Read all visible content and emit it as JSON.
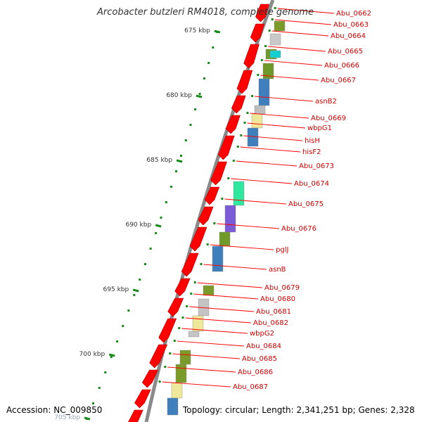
{
  "title": "Arcobacter butzleri RM4018, complete genome",
  "accession": "Accession: NC_009850",
  "topology": "Topology: circular; Length: 2,341,251 bp; Genes: 2,328",
  "colors": {
    "backbone": "#8a8a8a",
    "gene_arrow": "#ff0000",
    "label": "#cc0000",
    "tick": "#1a8a1a"
  },
  "scale_ticks": [
    {
      "label": "675 kbp"
    },
    {
      "label": "680 kbp"
    },
    {
      "label": "685 kbp"
    },
    {
      "label": "690 kbp"
    },
    {
      "label": "695 kbp"
    },
    {
      "label": "700 kbp"
    },
    {
      "label": "705 kbp"
    }
  ],
  "genes": [
    {
      "name": "Abu_0662"
    },
    {
      "name": "Abu_0663"
    },
    {
      "name": "Abu_0664"
    },
    {
      "name": "Abu_0665"
    },
    {
      "name": "Abu_0666"
    },
    {
      "name": "Abu_0667"
    },
    {
      "name": "asnB2"
    },
    {
      "name": "Abu_0669"
    },
    {
      "name": "wbpG1"
    },
    {
      "name": "hisH"
    },
    {
      "name": "hisF2"
    },
    {
      "name": "Abu_0673"
    },
    {
      "name": "Abu_0674"
    },
    {
      "name": "Abu_0675"
    },
    {
      "name": "Abu_0676"
    },
    {
      "name": "pglJ"
    },
    {
      "name": "asnB"
    },
    {
      "name": "Abu_0679"
    },
    {
      "name": "Abu_0680"
    },
    {
      "name": "Abu_0681"
    },
    {
      "name": "Abu_0682"
    },
    {
      "name": "wbpG2"
    },
    {
      "name": "Abu_0684"
    },
    {
      "name": "Abu_0685"
    },
    {
      "name": "Abu_0686"
    },
    {
      "name": "Abu_0687"
    }
  ]
}
